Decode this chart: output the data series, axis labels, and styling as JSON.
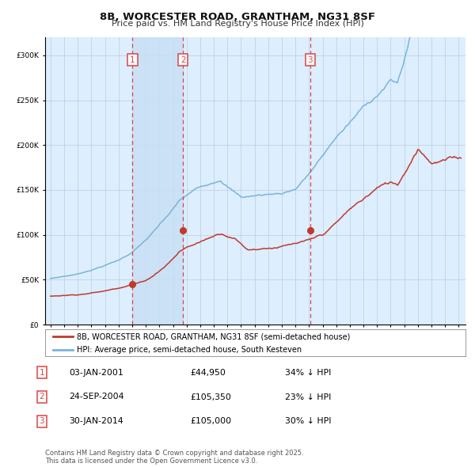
{
  "title1": "8B, WORCESTER ROAD, GRANTHAM, NG31 8SF",
  "title2": "Price paid vs. HM Land Registry's House Price Index (HPI)",
  "ylim": [
    0,
    320000
  ],
  "yticks": [
    0,
    50000,
    100000,
    150000,
    200000,
    250000,
    300000
  ],
  "ytick_labels": [
    "£0",
    "£50K",
    "£100K",
    "£150K",
    "£200K",
    "£250K",
    "£300K"
  ],
  "hpi_color": "#7ab4d8",
  "price_color": "#c0392b",
  "bg_color": "#ddeeff",
  "grid_color": "#bbccdd",
  "vline_color": "#dd4444",
  "sale1_date_num": 2001.02,
  "sale1_price": 44950,
  "sale2_date_num": 2004.73,
  "sale2_price": 105350,
  "sale3_date_num": 2014.08,
  "sale3_price": 105000,
  "legend_price_label": "8B, WORCESTER ROAD, GRANTHAM, NG31 8SF (semi-detached house)",
  "legend_hpi_label": "HPI: Average price, semi-detached house, South Kesteven",
  "table_rows": [
    {
      "num": "1",
      "date": "03-JAN-2001",
      "price": "£44,950",
      "hpi": "34% ↓ HPI"
    },
    {
      "num": "2",
      "date": "24-SEP-2004",
      "price": "£105,350",
      "hpi": "23% ↓ HPI"
    },
    {
      "num": "3",
      "date": "30-JAN-2014",
      "price": "£105,000",
      "hpi": "30% ↓ HPI"
    }
  ],
  "footnote": "Contains HM Land Registry data © Crown copyright and database right 2025.\nThis data is licensed under the Open Government Licence v3.0."
}
